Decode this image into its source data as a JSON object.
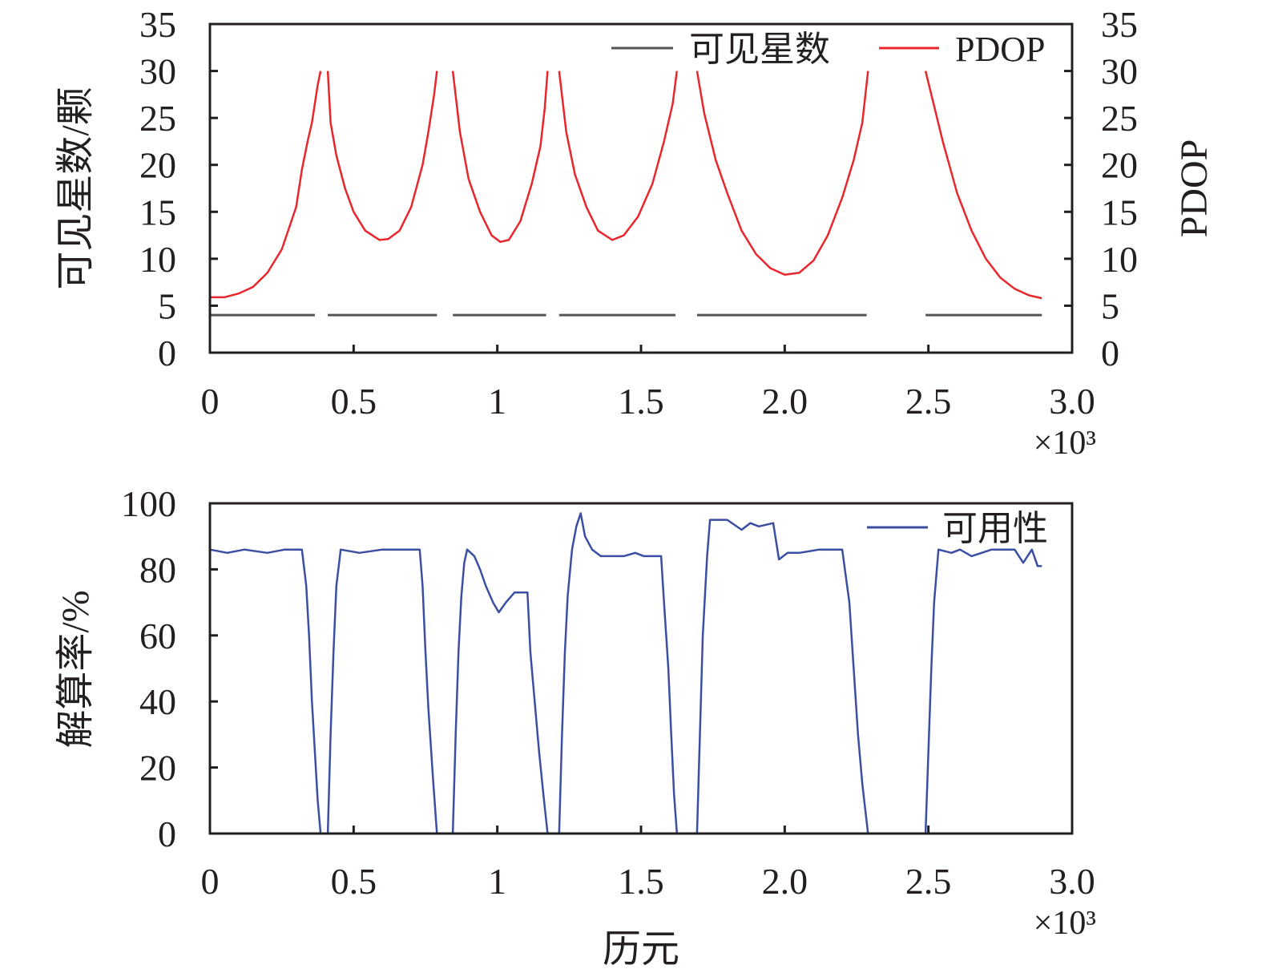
{
  "chart_data": [
    {
      "type": "line",
      "xlabel": "",
      "ylabel": "可见星数/颗",
      "y2label": "PDOP",
      "x_ticks": [
        "0",
        "0.5",
        "1",
        "1.5",
        "2.0",
        "2.5",
        "3.0"
      ],
      "x_tick_values": [
        0,
        500,
        1000,
        1500,
        2000,
        2500,
        3000
      ],
      "x_multiplier": "×10³",
      "xlim": [
        0,
        3000
      ],
      "y_ticks": [
        "0",
        "5",
        "10",
        "15",
        "20",
        "25",
        "30",
        "35"
      ],
      "y_tick_values": [
        0,
        5,
        10,
        15,
        20,
        25,
        30,
        35
      ],
      "ylim": [
        0,
        35
      ],
      "y2lim": [
        0,
        35
      ],
      "grid": false,
      "legend_position": "top-right",
      "colors": {
        "visible": "#555555",
        "pdop": "#e8262b"
      },
      "series": [
        {
          "name": "可见星数",
          "axis": "left",
          "segments": [
            [
              [
                0,
                4
              ],
              [
                365,
                4
              ]
            ],
            [
              [
                410,
                4
              ],
              [
                790,
                4
              ]
            ],
            [
              [
                845,
                4
              ],
              [
                1170,
                4
              ]
            ],
            [
              [
                1215,
                4
              ],
              [
                1620,
                4
              ]
            ],
            [
              [
                1695,
                4
              ],
              [
                2285,
                4
              ]
            ],
            [
              [
                2490,
                4
              ],
              [
                2895,
                4
              ]
            ]
          ]
        },
        {
          "name": "PDOP",
          "axis": "right",
          "segments": [
            [
              [
                0,
                5.9
              ],
              [
                50,
                5.9
              ],
              [
                100,
                6.3
              ],
              [
                150,
                7.0
              ],
              [
                200,
                8.5
              ],
              [
                250,
                11.0
              ],
              [
                300,
                15.5
              ],
              [
                320,
                19.5
              ],
              [
                340,
                22.5
              ],
              [
                355,
                24.5
              ],
              [
                375,
                28.5
              ],
              [
                385,
                30.0
              ]
            ],
            [
              [
                410,
                30.0
              ],
              [
                420,
                24.5
              ],
              [
                440,
                21.0
              ],
              [
                470,
                17.5
              ],
              [
                500,
                15.0
              ],
              [
                540,
                13.0
              ],
              [
                590,
                12.0
              ],
              [
                620,
                12.1
              ],
              [
                660,
                13.0
              ],
              [
                700,
                15.5
              ],
              [
                740,
                20.0
              ],
              [
                760,
                23.5
              ],
              [
                780,
                27.5
              ],
              [
                790,
                30.0
              ]
            ],
            [
              [
                845,
                30.0
              ],
              [
                870,
                23.5
              ],
              [
                900,
                18.5
              ],
              [
                940,
                15.0
              ],
              [
                980,
                12.5
              ],
              [
                1010,
                11.8
              ],
              [
                1040,
                12.0
              ],
              [
                1080,
                14.0
              ],
              [
                1120,
                18.0
              ],
              [
                1150,
                22.0
              ],
              [
                1165,
                26.0
              ],
              [
                1175,
                30.0
              ]
            ],
            [
              [
                1215,
                30.0
              ],
              [
                1240,
                23.5
              ],
              [
                1270,
                19.0
              ],
              [
                1310,
                15.5
              ],
              [
                1350,
                13.0
              ],
              [
                1400,
                12.0
              ],
              [
                1440,
                12.5
              ],
              [
                1490,
                14.5
              ],
              [
                1540,
                18.0
              ],
              [
                1580,
                22.5
              ],
              [
                1610,
                26.5
              ],
              [
                1625,
                30.0
              ]
            ],
            [
              [
                1695,
                30.0
              ],
              [
                1720,
                25.5
              ],
              [
                1760,
                20.5
              ],
              [
                1800,
                17.0
              ],
              [
                1850,
                13.0
              ],
              [
                1900,
                10.5
              ],
              [
                1950,
                9.0
              ],
              [
                2000,
                8.3
              ],
              [
                2050,
                8.5
              ],
              [
                2100,
                9.8
              ],
              [
                2150,
                12.5
              ],
              [
                2200,
                16.5
              ],
              [
                2240,
                20.5
              ],
              [
                2270,
                24.5
              ],
              [
                2290,
                30.0
              ]
            ],
            [
              [
                2490,
                30.0
              ],
              [
                2510,
                27.5
              ],
              [
                2550,
                22.5
              ],
              [
                2600,
                17.0
              ],
              [
                2650,
                13.0
              ],
              [
                2700,
                10.0
              ],
              [
                2750,
                8.0
              ],
              [
                2800,
                6.8
              ],
              [
                2850,
                6.1
              ],
              [
                2895,
                5.8
              ]
            ]
          ]
        }
      ]
    },
    {
      "type": "line",
      "xlabel": "历元",
      "ylabel": "解算率/%",
      "x_ticks": [
        "0",
        "0.5",
        "1",
        "1.5",
        "2.0",
        "2.5",
        "3.0"
      ],
      "x_tick_values": [
        0,
        500,
        1000,
        1500,
        2000,
        2500,
        3000
      ],
      "x_multiplier": "×10³",
      "xlim": [
        0,
        3000
      ],
      "y_ticks": [
        "0",
        "20",
        "40",
        "60",
        "80",
        "100"
      ],
      "y_tick_values": [
        0,
        20,
        40,
        60,
        80,
        100
      ],
      "ylim": [
        0,
        100
      ],
      "grid": false,
      "legend_position": "top-right",
      "colors": {
        "availability": "#3a4fa3"
      },
      "series": [
        {
          "name": "可用性",
          "segments": [
            [
              [
                0,
                86
              ],
              [
                60,
                85
              ],
              [
                120,
                86
              ],
              [
                200,
                85
              ],
              [
                260,
                86
              ],
              [
                320,
                86
              ],
              [
                335,
                75
              ],
              [
                345,
                60
              ],
              [
                355,
                40
              ],
              [
                365,
                25
              ],
              [
                375,
                10
              ],
              [
                385,
                0
              ]
            ],
            [
              [
                410,
                0
              ],
              [
                420,
                30
              ],
              [
                430,
                55
              ],
              [
                440,
                75
              ],
              [
                455,
                86
              ],
              [
                520,
                85
              ],
              [
                600,
                86
              ],
              [
                680,
                86
              ],
              [
                730,
                86
              ],
              [
                740,
                75
              ],
              [
                750,
                55
              ],
              [
                760,
                38
              ],
              [
                775,
                18
              ],
              [
                790,
                0
              ]
            ],
            [
              [
                845,
                0
              ],
              [
                855,
                30
              ],
              [
                865,
                55
              ],
              [
                875,
                72
              ],
              [
                885,
                82
              ],
              [
                895,
                86
              ],
              [
                920,
                84
              ],
              [
                940,
                80
              ],
              [
                960,
                75
              ],
              [
                985,
                70
              ],
              [
                1005,
                67
              ],
              [
                1030,
                70
              ],
              [
                1060,
                73
              ],
              [
                1105,
                73
              ],
              [
                1115,
                55
              ],
              [
                1130,
                40
              ],
              [
                1145,
                25
              ],
              [
                1160,
                12
              ],
              [
                1175,
                0
              ]
            ],
            [
              [
                1215,
                0
              ],
              [
                1225,
                30
              ],
              [
                1235,
                55
              ],
              [
                1245,
                72
              ],
              [
                1260,
                86
              ],
              [
                1275,
                93
              ],
              [
                1290,
                97
              ],
              [
                1305,
                90
              ],
              [
                1330,
                86
              ],
              [
                1360,
                84
              ],
              [
                1400,
                84
              ],
              [
                1440,
                84
              ],
              [
                1480,
                85
              ],
              [
                1510,
                84
              ],
              [
                1570,
                84
              ],
              [
                1580,
                70
              ],
              [
                1595,
                50
              ],
              [
                1605,
                30
              ],
              [
                1615,
                12
              ],
              [
                1625,
                0
              ]
            ],
            [
              [
                1695,
                0
              ],
              [
                1705,
                30
              ],
              [
                1715,
                60
              ],
              [
                1730,
                84
              ],
              [
                1740,
                95
              ],
              [
                1800,
                95
              ],
              [
                1850,
                92
              ],
              [
                1880,
                94
              ],
              [
                1910,
                93
              ],
              [
                1960,
                94
              ],
              [
                1980,
                83
              ],
              [
                2010,
                85
              ],
              [
                2050,
                85
              ],
              [
                2120,
                86
              ],
              [
                2200,
                86
              ],
              [
                2225,
                70
              ],
              [
                2240,
                50
              ],
              [
                2255,
                30
              ],
              [
                2270,
                15
              ],
              [
                2290,
                0
              ]
            ],
            [
              [
                2490,
                0
              ],
              [
                2500,
                25
              ],
              [
                2510,
                50
              ],
              [
                2520,
                70
              ],
              [
                2535,
                86
              ],
              [
                2580,
                85
              ],
              [
                2610,
                86
              ],
              [
                2650,
                84
              ],
              [
                2720,
                86
              ],
              [
                2800,
                86
              ],
              [
                2830,
                82
              ],
              [
                2860,
                86
              ],
              [
                2880,
                81
              ],
              [
                2895,
                81
              ]
            ]
          ]
        }
      ]
    }
  ]
}
